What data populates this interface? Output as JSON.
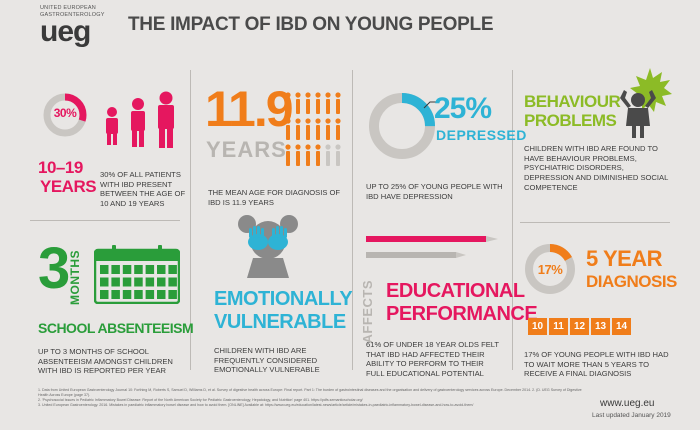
{
  "header": {
    "org_line1": "UNITED EUROPEAN",
    "org_line2": "GASTROENTEROLOGY",
    "logo": "ueg",
    "title": "THE IMPACT OF IBD ON YOUNG PEOPLE"
  },
  "panel1": {
    "percent": "30%",
    "fraction": 0.3,
    "age_range": "10–19",
    "age_unit": "YEARS",
    "description": "30% OF ALL PATIENTS WITH IBD PRESENT BETWEEN THE AGE OF 10 AND 19 YEARS",
    "color": "#e5175f"
  },
  "panel2": {
    "number": "11.9",
    "unit": "YEARS",
    "description": "THE MEAN AGE FOR DIAGNOSIS OF IBD IS 11.9 YEARS",
    "color": "#f07d1a"
  },
  "panel3": {
    "percent": "25%",
    "fraction": 0.25,
    "label": "DEPRESSED",
    "description": "UP TO 25% OF YOUNG PEOPLE WITH IBD HAVE DEPRESSION",
    "color": "#2eb3d5"
  },
  "panel4": {
    "title_line1": "BEHAVIOUR",
    "title_line2": "PROBLEMS",
    "description": "CHILDREN WITH IBD ARE FOUND TO HAVE BEHAVIOUR PROBLEMS, PSYCHIATRIC DISORDERS, DEPRESSION AND DIMINISHED SOCIAL COMPETENCE",
    "color": "#8cbb26"
  },
  "panel5": {
    "number": "3",
    "unit": "MONTHS",
    "title": "SCHOOL ABSENTEEISM",
    "description": "UP TO 3 MONTHS OF SCHOOL ABSENTEEISM AMONGST CHILDREN WITH IBD IS REPORTED PER YEAR",
    "color": "#2a9d3a"
  },
  "panel6": {
    "title_line1": "EMOTIONALLY",
    "title_line2": "VULNERABLE",
    "description": "CHILDREN WITH IBD ARE FREQUENTLY CONSIDERED EMOTIONALLY VULNERABLE",
    "color": "#2eb3d5"
  },
  "panel7": {
    "affects": "AFFECTS",
    "title_line1": "EDUCATIONAL",
    "title_line2": "PERFORMANCE",
    "description": "61% OF UNDER 18 YEAR OLDS FELT THAT IBD HAD AFFECTED THEIR ABILITY TO PERFORM TO THEIR FULL EDUCATIONAL POTENTIAL",
    "color": "#e5175f"
  },
  "panel8": {
    "percent": "17%",
    "fraction": 0.17,
    "title_line1": "5 YEAR",
    "title_line2": "DIAGNOSIS",
    "years": [
      "10",
      "11",
      "12",
      "13",
      "14"
    ],
    "description": "17% OF YOUNG PEOPLE WITH IBD HAD TO WAIT MORE THAN 5 YEARS TO RECEIVE A FINAL DIAGNOSIS",
    "color": "#f07d1a"
  },
  "footer": {
    "ref1": "1. Data from United European Gastroenterology Journal 10: Forthing M, Roberts S, Samuel D, Williams D, et al. Survey of digestive health across Europe: Final report. Part 1: The burden of gastrointestinal diseases and the organisation and delivery of gastroenterology services across Europe. December 2014. 2. (D. UEG Survey of Digestive Health Across Europe (page 37).",
    "ref2": "2. 'Psychosocial Issues in Pediatric Inflammatory Bowel Disease: Report of the North American Society for Pediatric Gastroenterology, Hepatology, and Nutrition' page 401. https://pdfs.semanticscholar.org/",
    "ref3": "3. United European Gastroenterology. 2016. Mistakes in paediatric inflammatory bowel disease and how to avoid them. [ONLINE] Available at: https://www.ueg.eu/education/latest-news/article/article/mistakes-in-paediatric-inflammatory-bowel-disease-and-how-to-avoid-them/",
    "website": "www.ueg.eu",
    "updated": "Last updated January 2019"
  }
}
